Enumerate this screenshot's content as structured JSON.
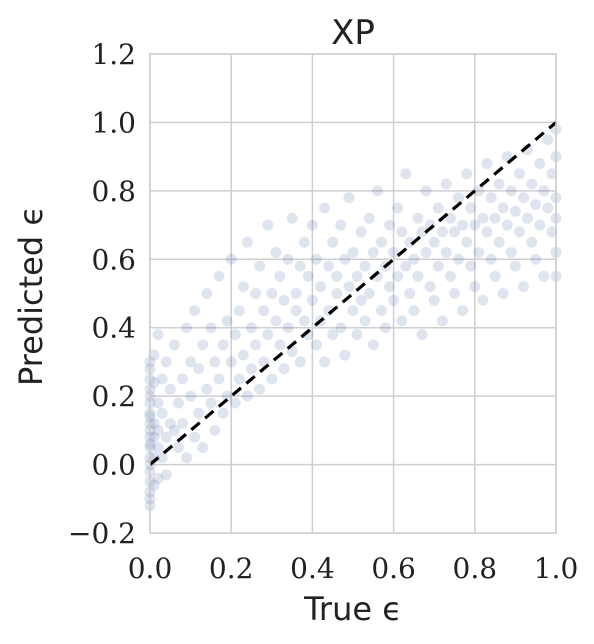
{
  "chart_data": {
    "type": "scatter",
    "title": "XP",
    "xlabel": "True ϵ",
    "ylabel": "Predicted ϵ",
    "xlim": [
      0.0,
      1.0
    ],
    "ylim": [
      -0.2,
      1.2
    ],
    "xticks": [
      0.0,
      0.2,
      0.4,
      0.6,
      0.8,
      1.0
    ],
    "xtick_labels": [
      "0.0",
      "0.2",
      "0.4",
      "0.6",
      "0.8",
      "1.0"
    ],
    "yticks": [
      -0.2,
      0.0,
      0.2,
      0.4,
      0.6,
      0.8,
      1.0,
      1.2
    ],
    "ytick_labels": [
      "−0.2",
      "0.0",
      "0.2",
      "0.4",
      "0.6",
      "0.8",
      "1.0",
      "1.2"
    ],
    "grid": true,
    "point_color": "#3a5f9a",
    "point_alpha": 0.08,
    "reference_line": {
      "style": "dashed",
      "color": "#000000",
      "x": [
        0.0,
        1.0
      ],
      "y": [
        0.0,
        1.0
      ]
    },
    "series": [
      {
        "points": [
          [
            0.0,
            0.02
          ],
          [
            0.0,
            0.1
          ],
          [
            0.0,
            0.2
          ],
          [
            0.0,
            0.3
          ],
          [
            0.0,
            -0.05
          ],
          [
            0.0,
            -0.12
          ],
          [
            0.0,
            0.05
          ],
          [
            0.0,
            0.15
          ],
          [
            0.0,
            0.25
          ],
          [
            0.0,
            0.08
          ],
          [
            0.0,
            -0.1
          ],
          [
            0.0,
            0.0
          ],
          [
            0.0,
            0.12
          ],
          [
            0.0,
            0.18
          ],
          [
            0.0,
            0.22
          ],
          [
            0.0,
            -0.02
          ],
          [
            0.0,
            0.28
          ],
          [
            0.0,
            0.06
          ],
          [
            0.0,
            -0.08
          ],
          [
            0.0,
            0.14
          ],
          [
            0.01,
            0.12
          ],
          [
            0.01,
            0.02
          ],
          [
            0.01,
            -0.06
          ],
          [
            0.01,
            0.24
          ],
          [
            0.01,
            0.32
          ],
          [
            0.01,
            0.08
          ],
          [
            0.02,
            0.18
          ],
          [
            0.02,
            0.05
          ],
          [
            0.02,
            -0.04
          ],
          [
            0.02,
            0.38
          ],
          [
            0.02,
            0.1
          ],
          [
            0.03,
            0.15
          ],
          [
            0.03,
            0.02
          ],
          [
            0.03,
            0.25
          ],
          [
            0.04,
            0.08
          ],
          [
            0.04,
            0.3
          ],
          [
            0.04,
            -0.03
          ],
          [
            0.05,
            0.12
          ],
          [
            0.05,
            0.22
          ],
          [
            0.06,
            0.1
          ],
          [
            0.06,
            0.35
          ],
          [
            0.07,
            0.05
          ],
          [
            0.07,
            0.18
          ],
          [
            0.08,
            0.25
          ],
          [
            0.08,
            0.12
          ],
          [
            0.09,
            0.4
          ],
          [
            0.09,
            0.02
          ],
          [
            0.1,
            0.2
          ],
          [
            0.1,
            0.3
          ],
          [
            0.11,
            0.08
          ],
          [
            0.11,
            0.45
          ],
          [
            0.12,
            0.15
          ],
          [
            0.12,
            0.28
          ],
          [
            0.13,
            0.35
          ],
          [
            0.13,
            0.05
          ],
          [
            0.14,
            0.22
          ],
          [
            0.14,
            0.5
          ],
          [
            0.15,
            0.18
          ],
          [
            0.15,
            0.4
          ],
          [
            0.16,
            0.3
          ],
          [
            0.16,
            0.1
          ],
          [
            0.17,
            0.25
          ],
          [
            0.17,
            0.55
          ],
          [
            0.18,
            0.35
          ],
          [
            0.18,
            0.15
          ],
          [
            0.19,
            0.42
          ],
          [
            0.19,
            0.2
          ],
          [
            0.2,
            0.3
          ],
          [
            0.2,
            0.6
          ],
          [
            0.21,
            0.38
          ],
          [
            0.21,
            0.18
          ],
          [
            0.22,
            0.45
          ],
          [
            0.22,
            0.25
          ],
          [
            0.23,
            0.52
          ],
          [
            0.23,
            0.32
          ],
          [
            0.24,
            0.2
          ],
          [
            0.24,
            0.65
          ],
          [
            0.25,
            0.4
          ],
          [
            0.25,
            0.28
          ],
          [
            0.26,
            0.5
          ],
          [
            0.26,
            0.35
          ],
          [
            0.27,
            0.22
          ],
          [
            0.27,
            0.58
          ],
          [
            0.28,
            0.45
          ],
          [
            0.28,
            0.3
          ],
          [
            0.29,
            0.7
          ],
          [
            0.29,
            0.38
          ],
          [
            0.3,
            0.5
          ],
          [
            0.3,
            0.25
          ],
          [
            0.31,
            0.42
          ],
          [
            0.31,
            0.62
          ],
          [
            0.32,
            0.35
          ],
          [
            0.32,
            0.55
          ],
          [
            0.33,
            0.48
          ],
          [
            0.33,
            0.28
          ],
          [
            0.34,
            0.6
          ],
          [
            0.34,
            0.4
          ],
          [
            0.35,
            0.72
          ],
          [
            0.35,
            0.33
          ],
          [
            0.36,
            0.5
          ],
          [
            0.36,
            0.45
          ],
          [
            0.37,
            0.58
          ],
          [
            0.37,
            0.3
          ],
          [
            0.38,
            0.65
          ],
          [
            0.38,
            0.42
          ],
          [
            0.39,
            0.55
          ],
          [
            0.39,
            0.38
          ],
          [
            0.4,
            0.48
          ],
          [
            0.4,
            0.7
          ],
          [
            0.41,
            0.35
          ],
          [
            0.41,
            0.6
          ],
          [
            0.42,
            0.52
          ],
          [
            0.42,
            0.42
          ],
          [
            0.43,
            0.75
          ],
          [
            0.43,
            0.3
          ],
          [
            0.44,
            0.58
          ],
          [
            0.44,
            0.45
          ],
          [
            0.45,
            0.65
          ],
          [
            0.45,
            0.38
          ],
          [
            0.46,
            0.55
          ],
          [
            0.46,
            0.5
          ],
          [
            0.47,
            0.7
          ],
          [
            0.47,
            0.4
          ],
          [
            0.48,
            0.6
          ],
          [
            0.48,
            0.32
          ],
          [
            0.49,
            0.52
          ],
          [
            0.49,
            0.78
          ],
          [
            0.5,
            0.45
          ],
          [
            0.5,
            0.62
          ],
          [
            0.51,
            0.55
          ],
          [
            0.51,
            0.38
          ],
          [
            0.52,
            0.68
          ],
          [
            0.52,
            0.48
          ],
          [
            0.53,
            0.58
          ],
          [
            0.53,
            0.42
          ],
          [
            0.54,
            0.72
          ],
          [
            0.54,
            0.5
          ],
          [
            0.55,
            0.62
          ],
          [
            0.55,
            0.35
          ],
          [
            0.56,
            0.55
          ],
          [
            0.56,
            0.8
          ],
          [
            0.57,
            0.45
          ],
          [
            0.57,
            0.65
          ],
          [
            0.58,
            0.58
          ],
          [
            0.58,
            0.4
          ],
          [
            0.59,
            0.7
          ],
          [
            0.59,
            0.52
          ],
          [
            0.6,
            0.62
          ],
          [
            0.6,
            0.48
          ],
          [
            0.61,
            0.75
          ],
          [
            0.61,
            0.55
          ],
          [
            0.62,
            0.42
          ],
          [
            0.62,
            0.68
          ],
          [
            0.63,
            0.58
          ],
          [
            0.63,
            0.85
          ],
          [
            0.64,
            0.5
          ],
          [
            0.64,
            0.65
          ],
          [
            0.65,
            0.6
          ],
          [
            0.65,
            0.45
          ],
          [
            0.66,
            0.72
          ],
          [
            0.66,
            0.55
          ],
          [
            0.67,
            0.68
          ],
          [
            0.67,
            0.38
          ],
          [
            0.68,
            0.62
          ],
          [
            0.68,
            0.8
          ],
          [
            0.69,
            0.52
          ],
          [
            0.69,
            0.7
          ],
          [
            0.7,
            0.65
          ],
          [
            0.7,
            0.48
          ],
          [
            0.71,
            0.75
          ],
          [
            0.71,
            0.58
          ],
          [
            0.72,
            0.68
          ],
          [
            0.72,
            0.42
          ],
          [
            0.73,
            0.62
          ],
          [
            0.73,
            0.82
          ],
          [
            0.74,
            0.55
          ],
          [
            0.74,
            0.72
          ],
          [
            0.75,
            0.68
          ],
          [
            0.75,
            0.5
          ],
          [
            0.76,
            0.78
          ],
          [
            0.76,
            0.6
          ],
          [
            0.77,
            0.7
          ],
          [
            0.77,
            0.45
          ],
          [
            0.78,
            0.65
          ],
          [
            0.78,
            0.85
          ],
          [
            0.79,
            0.58
          ],
          [
            0.79,
            0.75
          ],
          [
            0.8,
            0.7
          ],
          [
            0.8,
            0.52
          ],
          [
            0.81,
            0.8
          ],
          [
            0.81,
            0.62
          ],
          [
            0.82,
            0.72
          ],
          [
            0.82,
            0.48
          ],
          [
            0.83,
            0.68
          ],
          [
            0.83,
            0.88
          ],
          [
            0.84,
            0.6
          ],
          [
            0.84,
            0.78
          ],
          [
            0.85,
            0.72
          ],
          [
            0.85,
            0.55
          ],
          [
            0.86,
            0.82
          ],
          [
            0.86,
            0.65
          ],
          [
            0.87,
            0.75
          ],
          [
            0.87,
            0.5
          ],
          [
            0.88,
            0.7
          ],
          [
            0.88,
            0.9
          ],
          [
            0.89,
            0.62
          ],
          [
            0.89,
            0.8
          ],
          [
            0.9,
            0.74
          ],
          [
            0.9,
            0.58
          ],
          [
            0.91,
            0.85
          ],
          [
            0.91,
            0.68
          ],
          [
            0.92,
            0.78
          ],
          [
            0.92,
            0.52
          ],
          [
            0.93,
            0.72
          ],
          [
            0.93,
            0.92
          ],
          [
            0.94,
            0.65
          ],
          [
            0.94,
            0.82
          ],
          [
            0.95,
            0.76
          ],
          [
            0.95,
            0.6
          ],
          [
            0.96,
            0.88
          ],
          [
            0.96,
            0.7
          ],
          [
            0.97,
            0.8
          ],
          [
            0.97,
            0.55
          ],
          [
            0.98,
            0.75
          ],
          [
            0.98,
            0.95
          ],
          [
            0.99,
            0.68
          ],
          [
            0.99,
            0.85
          ],
          [
            1.0,
            0.72
          ],
          [
            1.0,
            0.62
          ],
          [
            1.0,
            0.9
          ],
          [
            1.0,
            0.78
          ],
          [
            1.0,
            0.55
          ],
          [
            1.0,
            0.98
          ]
        ]
      }
    ]
  }
}
